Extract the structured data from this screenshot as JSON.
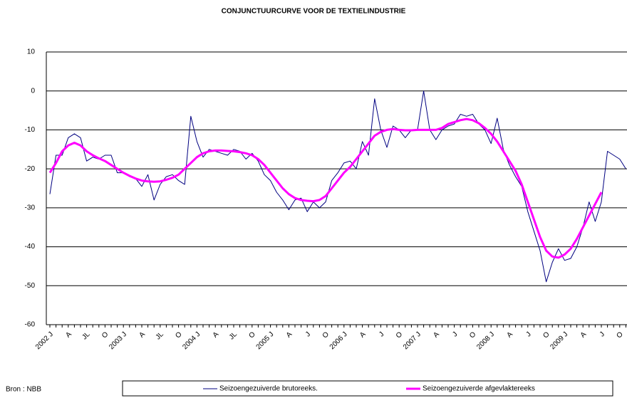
{
  "chart_data": {
    "type": "line",
    "title": "CONJUNCTUURCURVE VOOR DE TEXTIELINDUSTRIE",
    "source": "Bron : NBB",
    "categories": [
      "2002 J",
      null,
      null,
      "A",
      null,
      null,
      "JL",
      null,
      null,
      "O",
      null,
      null,
      "2003 J",
      null,
      null,
      "A",
      null,
      null,
      "JL",
      null,
      null,
      "O",
      null,
      null,
      "2004 J",
      null,
      null,
      "A",
      null,
      null,
      "JL",
      null,
      null,
      "O",
      null,
      null,
      "2005 J",
      null,
      null,
      "A",
      null,
      null,
      "J",
      null,
      null,
      "O",
      null,
      null,
      "2006 J",
      null,
      null,
      "A",
      null,
      null,
      "J",
      null,
      null,
      "O",
      null,
      null,
      "2007 J",
      null,
      null,
      "A",
      null,
      null,
      "J",
      null,
      null,
      "O",
      null,
      null,
      "2008 J",
      null,
      null,
      "A",
      null,
      null,
      "J",
      null,
      null,
      "O",
      null,
      null,
      "2009 J",
      null,
      null,
      "A",
      null,
      null,
      "J",
      null,
      null,
      "O",
      null
    ],
    "series": [
      {
        "name": "Seizoengezuiverde brutoreeks.",
        "color": "#000080",
        "width": 1,
        "values": [
          -26.5,
          -16.5,
          -16.5,
          -12,
          -11,
          -12,
          -18,
          -17,
          -17.5,
          -16.5,
          -16.5,
          -21,
          -21,
          -22,
          -22.5,
          -24.5,
          -21.5,
          -28,
          -24,
          -22,
          -21.5,
          -23,
          -24,
          -6.5,
          -13,
          -17,
          -15,
          -15.5,
          -16,
          -16.5,
          -15,
          -15.5,
          -17.5,
          -16,
          -18,
          -21.5,
          -23,
          -26,
          -28,
          -30.5,
          -28,
          -27.5,
          -31,
          -28.5,
          -30,
          -28.5,
          -23,
          -21,
          -18.5,
          -18,
          -20,
          -13,
          -16.5,
          -2,
          -10,
          -14.5,
          -9,
          -10,
          -12,
          -10,
          -10,
          0,
          -10,
          -12.5,
          -10,
          -9,
          -8.5,
          -6,
          -6.5,
          -6,
          -8.5,
          -10,
          -13.5,
          -7,
          -15,
          -19,
          -22,
          -24.5,
          -31,
          -36,
          -41,
          -49,
          -44,
          -40.5,
          -43.5,
          -43,
          -40,
          -35,
          -28.5,
          -33.5,
          -28.5,
          -15.5,
          -16.5,
          -17.5,
          -20
        ]
      },
      {
        "name": "Seizoengezuiverde afgevlaktereeks",
        "color": "#ff00ff",
        "width": 3,
        "values": [
          -21,
          -18.5,
          -15.5,
          -14,
          -13.3,
          -14,
          -15.5,
          -16.5,
          -17.3,
          -18,
          -19,
          -20,
          -21,
          -21.8,
          -22.5,
          -23,
          -23.2,
          -23.3,
          -23.2,
          -22.8,
          -22.3,
          -21.5,
          -20,
          -18.5,
          -17,
          -16,
          -15.5,
          -15.3,
          -15.3,
          -15.4,
          -15.5,
          -15.7,
          -16,
          -16.5,
          -17.5,
          -19,
          -21,
          -23,
          -25,
          -26.5,
          -27.5,
          -28,
          -28.2,
          -28.3,
          -28,
          -27,
          -25,
          -23,
          -21,
          -19.5,
          -17.5,
          -15.5,
          -13.5,
          -11.5,
          -10.5,
          -10,
          -9.8,
          -10,
          -10.1,
          -10.1,
          -10,
          -10,
          -10,
          -10,
          -9.5,
          -8.5,
          -8,
          -7.5,
          -7.2,
          -7.5,
          -8.3,
          -9.5,
          -11,
          -13,
          -15.5,
          -18,
          -20.5,
          -24,
          -28.5,
          -33,
          -37.5,
          -41,
          -42.5,
          -42.8,
          -42,
          -40.5,
          -38,
          -35,
          -32,
          -29,
          -26,
          null,
          null,
          null,
          null
        ]
      }
    ],
    "ylim": [
      -60,
      10
    ],
    "yticks": [
      -60,
      -50,
      -40,
      -30,
      -20,
      -10,
      0,
      10
    ],
    "grid": true
  }
}
